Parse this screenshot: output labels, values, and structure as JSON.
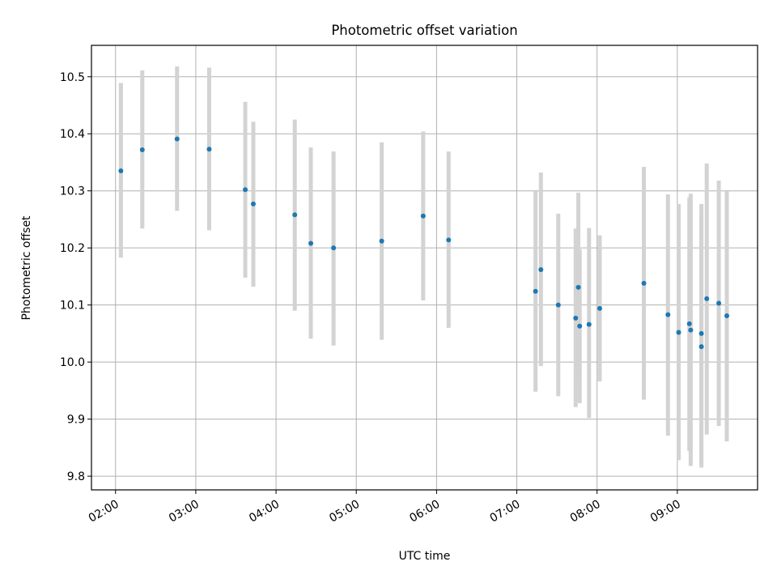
{
  "chart_data": {
    "type": "scatter",
    "title": "Photometric offset variation",
    "xlabel": "UTC time",
    "ylabel": "Photometric offset",
    "xlim": [
      "01:42",
      "10:00"
    ],
    "ylim": [
      9.776,
      10.555
    ],
    "x_ticks": [
      "02:00",
      "03:00",
      "04:00",
      "05:00",
      "06:00",
      "07:00",
      "08:00",
      "09:00"
    ],
    "y_ticks": [
      "9.8",
      "9.9",
      "10.0",
      "10.1",
      "10.2",
      "10.3",
      "10.4",
      "10.5"
    ],
    "grid": true,
    "point_color": "#1f77b4",
    "errorbar_color": "#d3d3d3",
    "points": [
      {
        "x": "02:04",
        "y": 10.335,
        "lo": 10.183,
        "hi": 10.489
      },
      {
        "x": "02:20",
        "y": 10.372,
        "lo": 10.234,
        "hi": 10.511
      },
      {
        "x": "02:46",
        "y": 10.391,
        "lo": 10.265,
        "hi": 10.518
      },
      {
        "x": "03:10",
        "y": 10.373,
        "lo": 10.231,
        "hi": 10.516
      },
      {
        "x": "03:37",
        "y": 10.302,
        "lo": 10.148,
        "hi": 10.456
      },
      {
        "x": "03:43",
        "y": 10.277,
        "lo": 10.132,
        "hi": 10.421
      },
      {
        "x": "04:14",
        "y": 10.258,
        "lo": 10.09,
        "hi": 10.425
      },
      {
        "x": "04:26",
        "y": 10.208,
        "lo": 10.041,
        "hi": 10.376
      },
      {
        "x": "04:43",
        "y": 10.2,
        "lo": 10.029,
        "hi": 10.369
      },
      {
        "x": "05:19",
        "y": 10.212,
        "lo": 10.039,
        "hi": 10.385
      },
      {
        "x": "05:50",
        "y": 10.256,
        "lo": 10.108,
        "hi": 10.404
      },
      {
        "x": "06:09",
        "y": 10.214,
        "lo": 10.06,
        "hi": 10.369
      },
      {
        "x": "07:14",
        "y": 10.124,
        "lo": 9.948,
        "hi": 10.299
      },
      {
        "x": "07:18",
        "y": 10.162,
        "lo": 9.993,
        "hi": 10.332
      },
      {
        "x": "07:31",
        "y": 10.1,
        "lo": 9.94,
        "hi": 10.26
      },
      {
        "x": "07:44",
        "y": 10.077,
        "lo": 9.921,
        "hi": 10.234
      },
      {
        "x": "07:46",
        "y": 10.131,
        "lo": 9.965,
        "hi": 10.297
      },
      {
        "x": "07:47",
        "y": 10.063,
        "lo": 9.928,
        "hi": 10.198
      },
      {
        "x": "07:54",
        "y": 10.066,
        "lo": 9.902,
        "hi": 10.235
      },
      {
        "x": "08:02",
        "y": 10.094,
        "lo": 9.966,
        "hi": 10.222
      },
      {
        "x": "08:35",
        "y": 10.138,
        "lo": 9.934,
        "hi": 10.342
      },
      {
        "x": "08:53",
        "y": 10.083,
        "lo": 9.871,
        "hi": 10.294
      },
      {
        "x": "09:01",
        "y": 10.052,
        "lo": 9.828,
        "hi": 10.277
      },
      {
        "x": "09:09",
        "y": 10.067,
        "lo": 9.844,
        "hi": 10.289
      },
      {
        "x": "09:10",
        "y": 10.056,
        "lo": 9.818,
        "hi": 10.295
      },
      {
        "x": "09:18",
        "y": 10.027,
        "lo": 9.815,
        "hi": 10.277
      },
      {
        "x": "09:18",
        "y": 10.05,
        "lo": 9.822,
        "hi": 10.26
      },
      {
        "x": "09:22",
        "y": 10.111,
        "lo": 9.873,
        "hi": 10.348
      },
      {
        "x": "09:31",
        "y": 10.103,
        "lo": 9.888,
        "hi": 10.318
      },
      {
        "x": "09:37",
        "y": 10.081,
        "lo": 9.861,
        "hi": 10.299
      }
    ]
  }
}
